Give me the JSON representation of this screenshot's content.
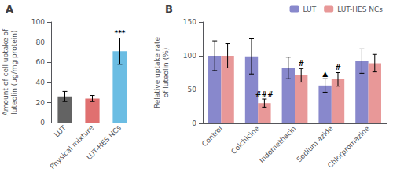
{
  "chart_data": [
    {
      "type": "bar",
      "title": "A",
      "categories": [
        "LUT",
        "Physical mixture",
        "LUT-HES NCs"
      ],
      "values": [
        26,
        24,
        71
      ],
      "errors": [
        5,
        3,
        13
      ],
      "colors": [
        "#636363",
        "#E07070",
        "#6BBDE3"
      ],
      "ylabel": "Amount of cell uptake of\nluteolin (μg/mg protein)",
      "ylim": [
        0,
        100
      ],
      "yticks": [
        0,
        20,
        40,
        60,
        80,
        100
      ],
      "grid": false,
      "annotations": [
        {
          "category": "LUT-HES NCs",
          "text": "***"
        }
      ]
    },
    {
      "type": "bar",
      "title": "B",
      "categories": [
        "Control",
        "Colchicine",
        "Indomethacin",
        "Sodium azide",
        "Chlorpromazine"
      ],
      "series": [
        {
          "name": "LUT",
          "color": "#8888CC",
          "values": [
            100,
            99,
            82,
            56,
            92
          ],
          "errors": [
            22,
            26,
            16,
            10,
            18
          ]
        },
        {
          "name": "LUT-HES NCs",
          "color": "#E89898",
          "values": [
            100,
            30,
            71,
            65,
            89
          ],
          "errors": [
            18,
            6,
            10,
            10,
            13
          ]
        }
      ],
      "ylabel": "Relative uptake rate\nof luteolin (%)",
      "ylim": [
        0,
        150
      ],
      "yticks": [
        0,
        50,
        100,
        150
      ],
      "grid": false,
      "legend": "upper right",
      "annotations": [
        {
          "category": "Colchicine",
          "series": "LUT-HES NCs",
          "text": "###"
        },
        {
          "category": "Indomethacin",
          "series": "LUT-HES NCs",
          "text": "#"
        },
        {
          "category": "Sodium azide",
          "series": "LUT",
          "text": "▲"
        },
        {
          "category": "Sodium azide",
          "series": "LUT-HES NCs",
          "text": "#"
        }
      ]
    }
  ]
}
